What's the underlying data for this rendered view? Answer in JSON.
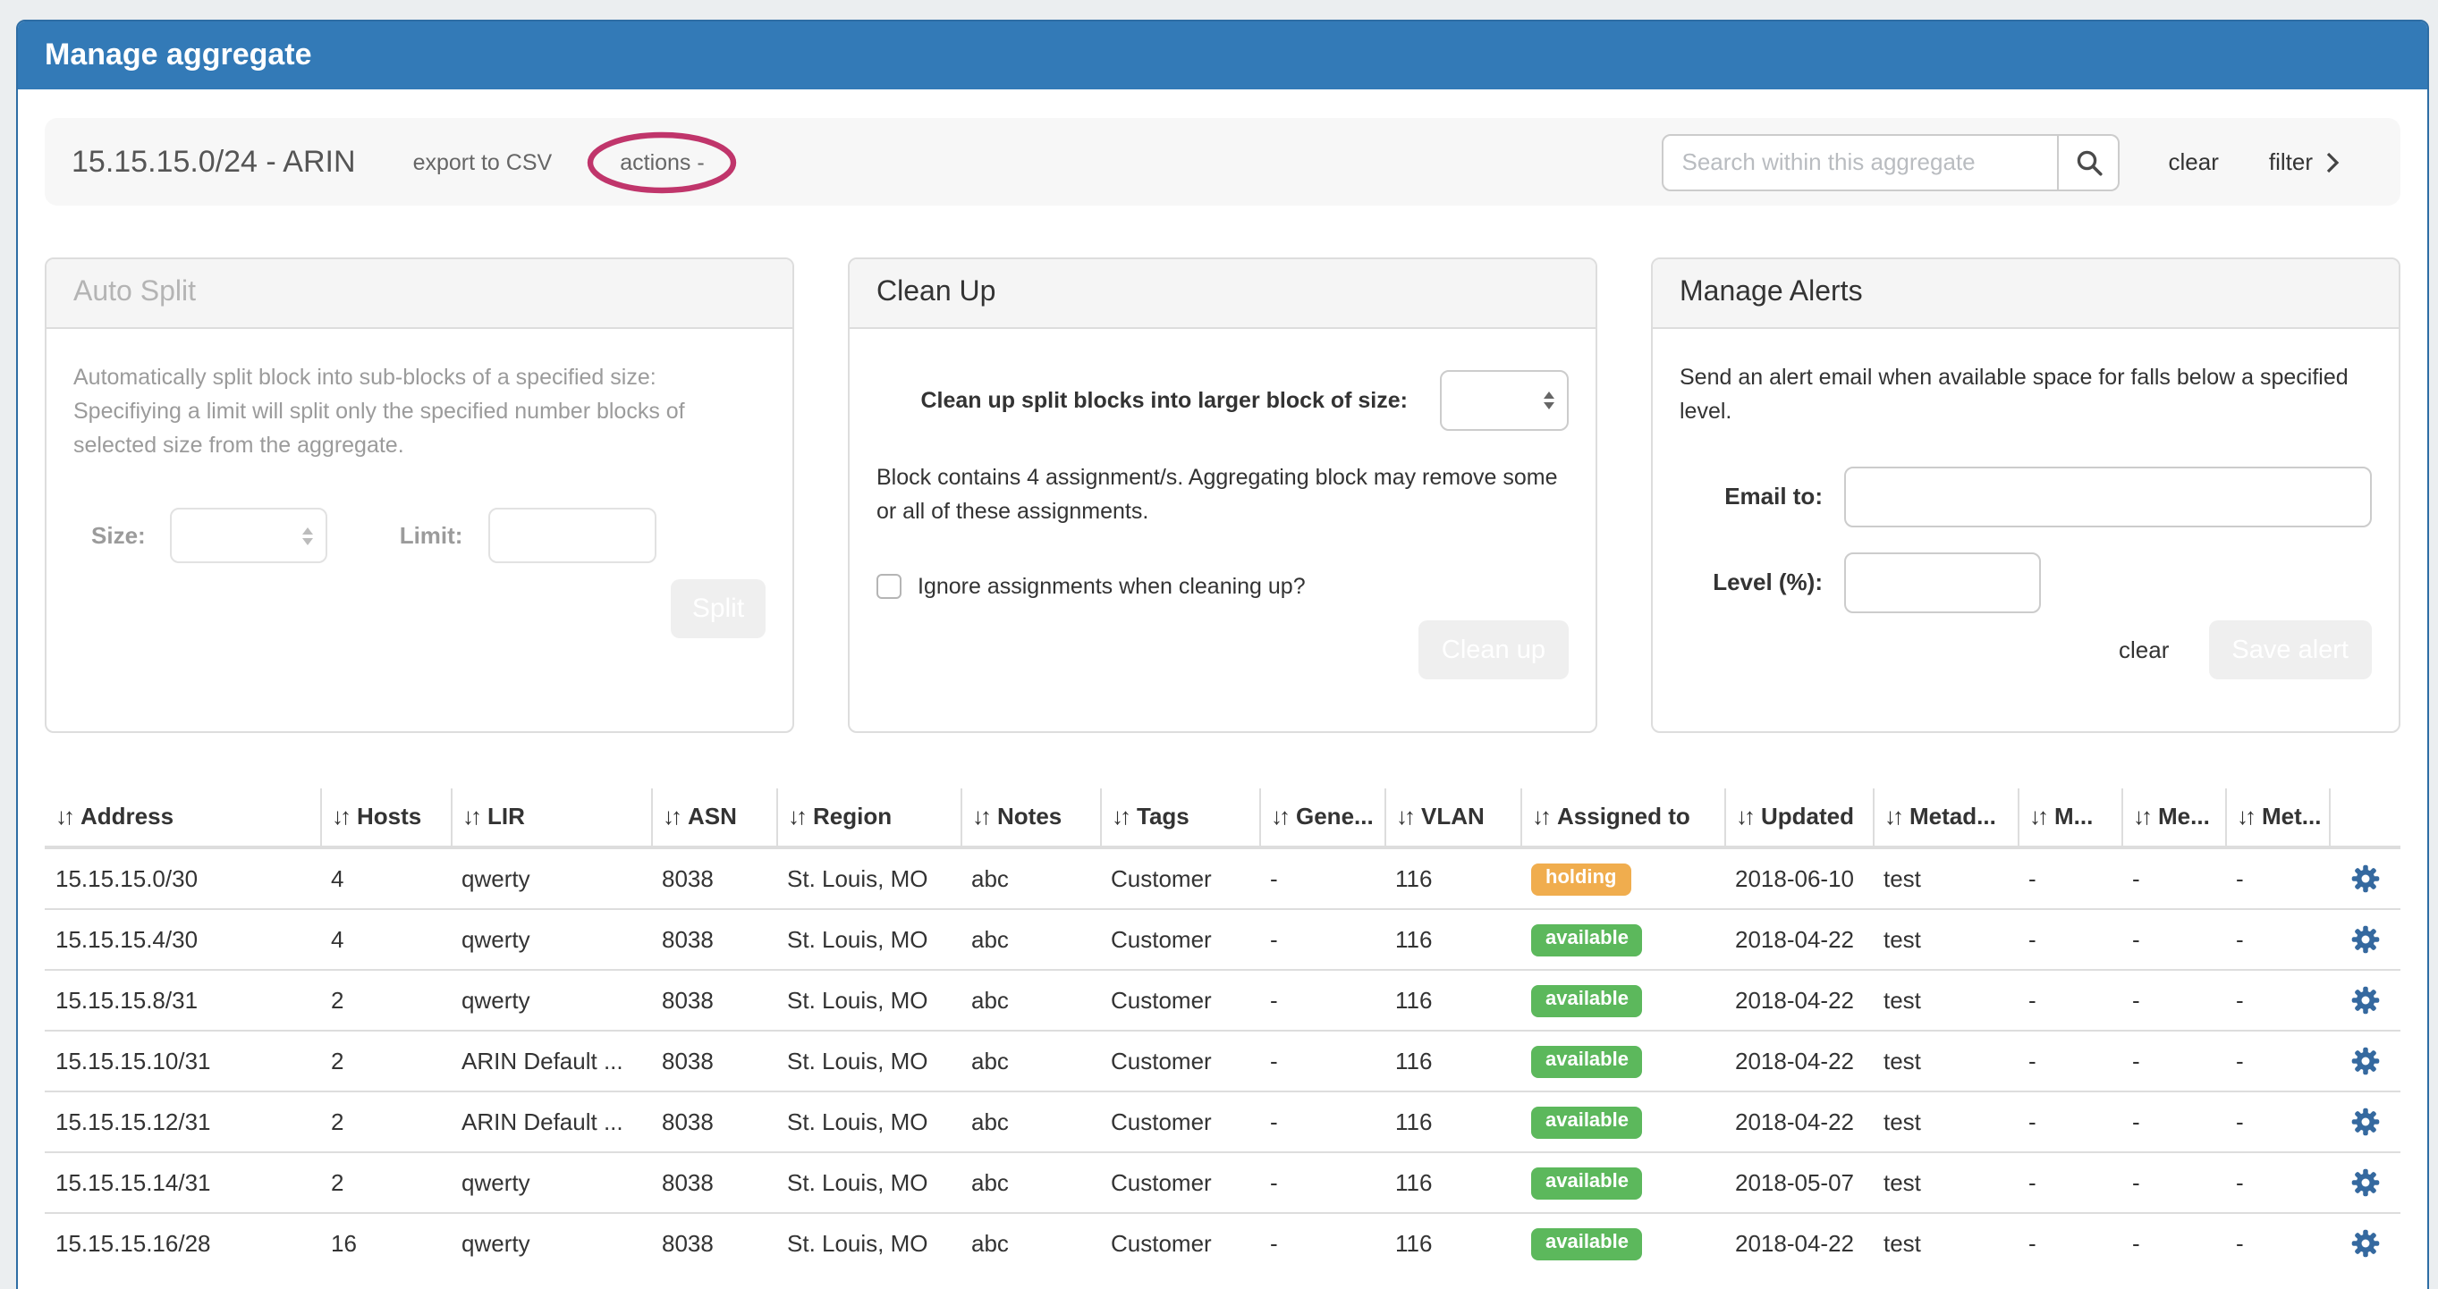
{
  "colors": {
    "header_blue": "#337ab7",
    "panel_border_blue": "#2e6da4",
    "page_background": "#ebeef0",
    "button_blue": "#79a5cb",
    "button_disabled_blue": "#cbdff0",
    "gear_blue": "#35699f",
    "annotation_red": "#c0356b"
  },
  "header": {
    "title": "Manage aggregate"
  },
  "toolbar": {
    "aggregate_title": "15.15.15.0/24 - ARIN",
    "export_csv_label": "export to CSV",
    "actions_label": "actions -",
    "search_placeholder": "Search within this aggregate",
    "search_value": "",
    "clear_label": "clear",
    "filter_label": "filter"
  },
  "panels": {
    "auto_split": {
      "title": "Auto Split",
      "description": "Automatically split block into sub-blocks of a specified size: Specifiying a limit will split only the specified number blocks of selected size from the aggregate.",
      "size_label": "Size:",
      "size_value": "",
      "limit_label": "Limit:",
      "limit_value": "",
      "split_button_label": "Split",
      "enabled": false
    },
    "clean_up": {
      "title": "Clean Up",
      "size_select_label": "Clean up split blocks into larger block of size:",
      "size_value": "",
      "info_text": "Block contains 4 assignment/s. Aggregating block may remove some or all of these assignments.",
      "checkbox_label": "Ignore assignments when cleaning up?",
      "checkbox_checked": false,
      "button_label": "Clean up"
    },
    "manage_alerts": {
      "title": "Manage Alerts",
      "description": "Send an alert email when available space for falls below a specified level.",
      "email_label": "Email to:",
      "email_value": "",
      "level_label": "Level (%):",
      "level_value": "",
      "clear_label": "clear",
      "save_button_label": "Save alert"
    }
  },
  "table": {
    "sort_icon": "↓↑",
    "columns": [
      "Address",
      "Hosts",
      "LIR",
      "ASN",
      "Region",
      "Notes",
      "Tags",
      "Gene...",
      "VLAN",
      "Assigned to",
      "Updated",
      "Metad...",
      "M...",
      "Me...",
      "Met..."
    ],
    "status_colors": {
      "holding": "#f0ad4e",
      "available": "#5cb85c"
    },
    "rows": [
      {
        "address": "15.15.15.0/30",
        "hosts": "4",
        "lir": "qwerty",
        "asn": "8038",
        "region": "St. Louis, MO",
        "notes": "abc",
        "tags": "Customer",
        "generic": "-",
        "vlan": "116",
        "assigned_to": "holding",
        "updated": "2018-06-10",
        "metadata1": "test",
        "metadata2": "-",
        "metadata3": "-",
        "metadata4": "-"
      },
      {
        "address": "15.15.15.4/30",
        "hosts": "4",
        "lir": "qwerty",
        "asn": "8038",
        "region": "St. Louis, MO",
        "notes": "abc",
        "tags": "Customer",
        "generic": "-",
        "vlan": "116",
        "assigned_to": "available",
        "updated": "2018-04-22",
        "metadata1": "test",
        "metadata2": "-",
        "metadata3": "-",
        "metadata4": "-"
      },
      {
        "address": "15.15.15.8/31",
        "hosts": "2",
        "lir": "qwerty",
        "asn": "8038",
        "region": "St. Louis, MO",
        "notes": "abc",
        "tags": "Customer",
        "generic": "-",
        "vlan": "116",
        "assigned_to": "available",
        "updated": "2018-04-22",
        "metadata1": "test",
        "metadata2": "-",
        "metadata3": "-",
        "metadata4": "-"
      },
      {
        "address": "15.15.15.10/31",
        "hosts": "2",
        "lir": "ARIN Default ...",
        "asn": "8038",
        "region": "St. Louis, MO",
        "notes": "abc",
        "tags": "Customer",
        "generic": "-",
        "vlan": "116",
        "assigned_to": "available",
        "updated": "2018-04-22",
        "metadata1": "test",
        "metadata2": "-",
        "metadata3": "-",
        "metadata4": "-"
      },
      {
        "address": "15.15.15.12/31",
        "hosts": "2",
        "lir": "ARIN Default ...",
        "asn": "8038",
        "region": "St. Louis, MO",
        "notes": "abc",
        "tags": "Customer",
        "generic": "-",
        "vlan": "116",
        "assigned_to": "available",
        "updated": "2018-04-22",
        "metadata1": "test",
        "metadata2": "-",
        "metadata3": "-",
        "metadata4": "-"
      },
      {
        "address": "15.15.15.14/31",
        "hosts": "2",
        "lir": "qwerty",
        "asn": "8038",
        "region": "St. Louis, MO",
        "notes": "abc",
        "tags": "Customer",
        "generic": "-",
        "vlan": "116",
        "assigned_to": "available",
        "updated": "2018-05-07",
        "metadata1": "test",
        "metadata2": "-",
        "metadata3": "-",
        "metadata4": "-"
      },
      {
        "address": "15.15.15.16/28",
        "hosts": "16",
        "lir": "qwerty",
        "asn": "8038",
        "region": "St. Louis, MO",
        "notes": "abc",
        "tags": "Customer",
        "generic": "-",
        "vlan": "116",
        "assigned_to": "available",
        "updated": "2018-04-22",
        "metadata1": "test",
        "metadata2": "-",
        "metadata3": "-",
        "metadata4": "-"
      }
    ]
  }
}
